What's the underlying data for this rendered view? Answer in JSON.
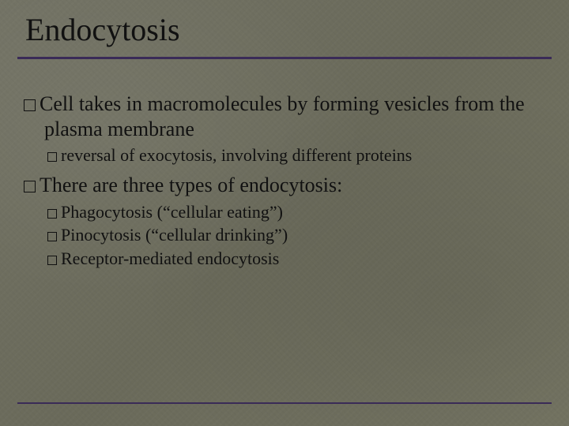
{
  "slide": {
    "title": "Endocytosis",
    "background_color": "#6f6f5d",
    "rule_color": "#3a2b57",
    "title_fontsize": 40,
    "l1_fontsize": 26,
    "l2_fontsize": 22,
    "bullets": {
      "b1": "Cell takes in macromolecules by forming vesicles from the plasma membrane",
      "b1_sub1": "reversal of exocytosis, involving different proteins",
      "b2": "There are three types of endocytosis:",
      "b2_sub1": "Phagocytosis (“cellular eating”)",
      "b2_sub2": "Pinocytosis (“cellular drinking”)",
      "b2_sub3": "Receptor-mediated endocytosis"
    }
  }
}
